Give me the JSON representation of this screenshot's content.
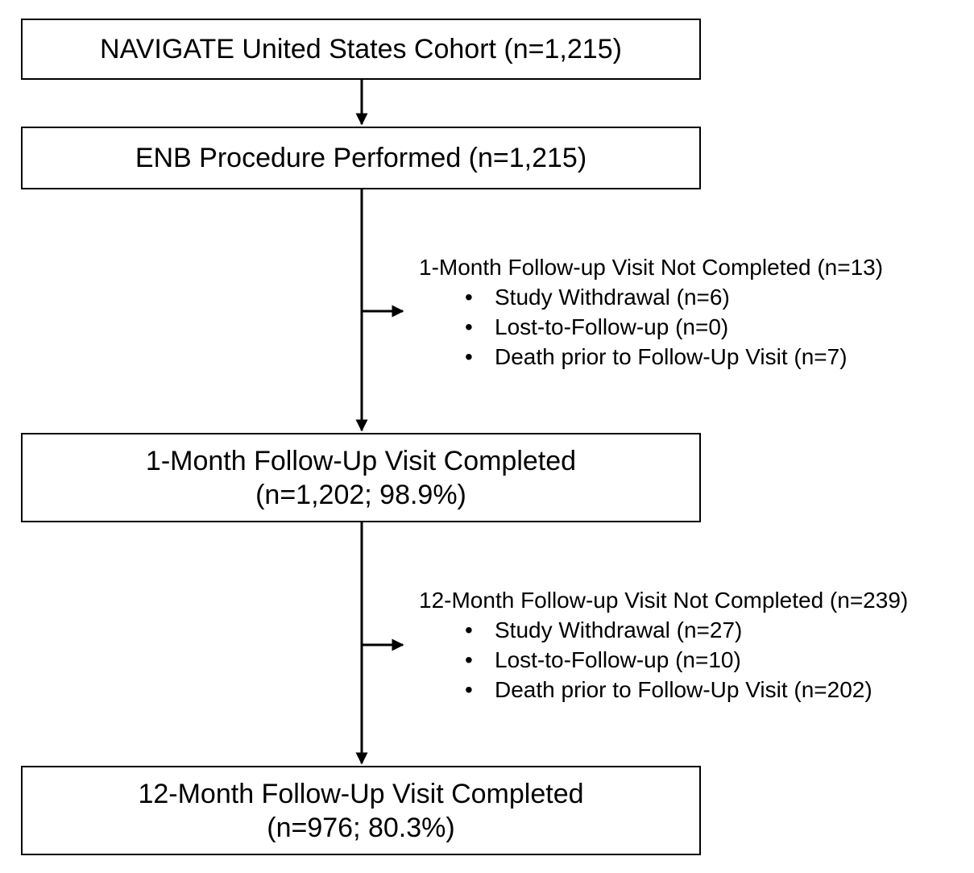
{
  "boxes": {
    "cohort": {
      "line1": "NAVIGATE United States Cohort (n=1,215)"
    },
    "procedure": {
      "line1": "ENB Procedure Performed (n=1,215)"
    },
    "month1": {
      "line1": "1-Month Follow-Up Visit Completed",
      "line2": "(n=1,202; 98.9%)"
    },
    "month12": {
      "line1": "12-Month Follow-Up Visit Completed",
      "line2": "(n=976; 80.3%)"
    }
  },
  "exclusions": {
    "month1": {
      "title": "1-Month Follow-up Visit Not Completed (n=13)",
      "items": [
        "Study Withdrawal (n=6)",
        "Lost-to-Follow-up (n=0)",
        "Death prior to Follow-Up Visit (n=7)"
      ]
    },
    "month12": {
      "title": "12-Month Follow-up Visit Not Completed (n=239)",
      "items": [
        "Study Withdrawal (n=27)",
        "Lost-to-Follow-up (n=10)",
        "Death prior to Follow-Up Visit (n=202)"
      ]
    }
  }
}
